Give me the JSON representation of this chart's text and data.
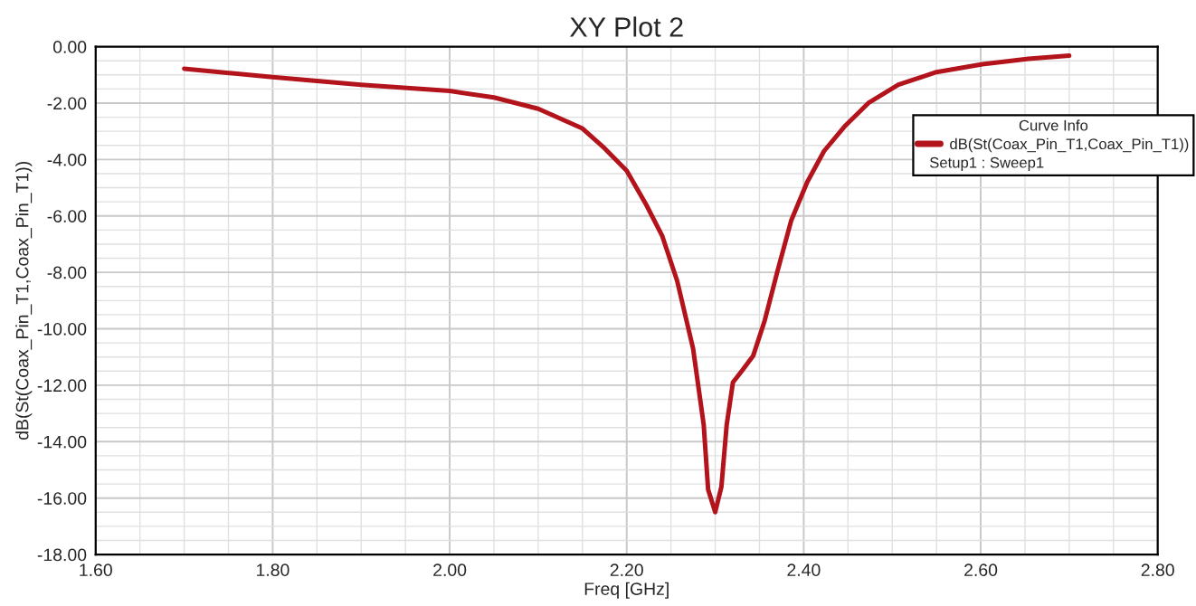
{
  "chart_data": {
    "type": "line",
    "title": "XY Plot 2",
    "xlabel": "Freq [GHz]",
    "ylabel": "dB(St(Coax_Pin_T1,Coax_Pin_T1))",
    "legend_title": "Curve Info",
    "annotations": [
      "Setup1 : Sweep1"
    ],
    "series": [
      {
        "name": "dB(St(Coax_Pin_T1,Coax_Pin_T1))",
        "color": "#b3141c",
        "x": [
          1.7,
          1.8,
          1.9,
          2.0,
          2.05,
          2.1,
          2.15,
          2.175,
          2.2,
          2.222,
          2.24,
          2.257,
          2.275,
          2.287,
          2.292,
          2.3,
          2.307,
          2.313,
          2.32,
          2.33,
          2.343,
          2.356,
          2.37,
          2.386,
          2.404,
          2.423,
          2.447,
          2.473,
          2.507,
          2.55,
          2.602,
          2.654,
          2.7
        ],
        "values": [
          -0.78,
          -1.08,
          -1.35,
          -1.57,
          -1.8,
          -2.2,
          -2.9,
          -3.6,
          -4.4,
          -5.6,
          -6.7,
          -8.3,
          -10.7,
          -13.4,
          -15.7,
          -16.5,
          -15.6,
          -13.4,
          -11.9,
          -11.5,
          -10.95,
          -9.7,
          -8.0,
          -6.15,
          -4.8,
          -3.7,
          -2.8,
          -2.0,
          -1.35,
          -0.9,
          -0.62,
          -0.43,
          -0.32
        ]
      }
    ],
    "xlim": [
      1.6,
      2.8
    ],
    "xticks": [
      {
        "value": 1.6,
        "label": "1.60"
      },
      {
        "value": 1.8,
        "label": "1.80"
      },
      {
        "value": 2.0,
        "label": "2.00"
      },
      {
        "value": 2.2,
        "label": "2.20"
      },
      {
        "value": 2.4,
        "label": "2.40"
      },
      {
        "value": 2.6,
        "label": "2.60"
      },
      {
        "value": 2.8,
        "label": "2.80"
      }
    ],
    "ylim": [
      -18,
      0
    ],
    "yticks": [
      {
        "value": -18,
        "label": "-18.00"
      },
      {
        "value": -16,
        "label": "-16.00"
      },
      {
        "value": -14,
        "label": "-14.00"
      },
      {
        "value": -12,
        "label": "-12.00"
      },
      {
        "value": -10,
        "label": "-10.00"
      },
      {
        "value": -8,
        "label": "-8.00"
      },
      {
        "value": -6,
        "label": "-6.00"
      },
      {
        "value": -4,
        "label": "-4.00"
      },
      {
        "value": -2,
        "label": "-2.00"
      },
      {
        "value": 0,
        "label": "0.00"
      }
    ],
    "grid": true,
    "legend": "top right",
    "line_style": "solid",
    "marker": "none"
  }
}
